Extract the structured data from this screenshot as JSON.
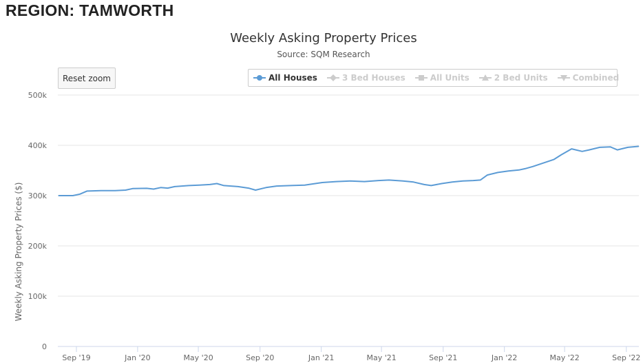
{
  "region": {
    "title": "REGION: TAMWORTH"
  },
  "toolbar": {
    "reset_zoom_label": "Reset zoom"
  },
  "legend": {
    "items": [
      {
        "label": "All Houses",
        "active": true,
        "symbol": "circle",
        "color": "#5b9bd5"
      },
      {
        "label": "3 Bed Houses",
        "active": false,
        "symbol": "diamond",
        "color": "#cccccc"
      },
      {
        "label": "All Units",
        "active": false,
        "symbol": "square",
        "color": "#cccccc"
      },
      {
        "label": "2 Bed Units",
        "active": false,
        "symbol": "triangle",
        "color": "#cccccc"
      },
      {
        "label": "Combined",
        "active": false,
        "symbol": "triangle-down",
        "color": "#cccccc"
      }
    ]
  },
  "chart_data": {
    "type": "line",
    "title": "Weekly Asking Property Prices",
    "subtitle": "Source: SQM Research",
    "ylabel": "Weekly Asking Property Prices ($)",
    "xlabel": "",
    "ylim": [
      0,
      500000
    ],
    "y_ticks": [
      {
        "value": 0,
        "label": "0"
      },
      {
        "value": 100000,
        "label": "100k"
      },
      {
        "value": 200000,
        "label": "200k"
      },
      {
        "value": 300000,
        "label": "300k"
      },
      {
        "value": 400000,
        "label": "400k"
      },
      {
        "value": 500000,
        "label": "500k"
      }
    ],
    "x_ticks": [
      "Sep '19",
      "Jan '20",
      "May '20",
      "Sep '20",
      "Jan '21",
      "May '21",
      "Sep '21",
      "Jan '22",
      "May '22",
      "Sep '22"
    ],
    "grid": true,
    "legend_position": "top-right",
    "series": [
      {
        "name": "All Houses",
        "color": "#5b9bd5",
        "points": [
          [
            "2019-07-28",
            300000
          ],
          [
            "2019-08-25",
            300000
          ],
          [
            "2019-09-08",
            303000
          ],
          [
            "2019-09-22",
            309000
          ],
          [
            "2019-10-20",
            310000
          ],
          [
            "2019-11-17",
            310000
          ],
          [
            "2019-12-08",
            311000
          ],
          [
            "2019-12-22",
            314000
          ],
          [
            "2020-01-19",
            314500
          ],
          [
            "2020-02-02",
            313000
          ],
          [
            "2020-02-16",
            316000
          ],
          [
            "2020-03-01",
            315000
          ],
          [
            "2020-03-15",
            318000
          ],
          [
            "2020-04-12",
            320000
          ],
          [
            "2020-05-03",
            321000
          ],
          [
            "2020-05-24",
            322000
          ],
          [
            "2020-06-07",
            324000
          ],
          [
            "2020-06-21",
            320000
          ],
          [
            "2020-07-19",
            318000
          ],
          [
            "2020-08-09",
            315000
          ],
          [
            "2020-08-23",
            311000
          ],
          [
            "2020-09-13",
            316000
          ],
          [
            "2020-10-04",
            319000
          ],
          [
            "2020-11-01",
            320000
          ],
          [
            "2020-11-29",
            321000
          ],
          [
            "2020-12-13",
            323000
          ],
          [
            "2021-01-03",
            326000
          ],
          [
            "2021-01-31",
            328000
          ],
          [
            "2021-02-28",
            329000
          ],
          [
            "2021-03-28",
            328000
          ],
          [
            "2021-04-25",
            330000
          ],
          [
            "2021-05-16",
            331000
          ],
          [
            "2021-06-13",
            329000
          ],
          [
            "2021-07-04",
            327000
          ],
          [
            "2021-07-25",
            322000
          ],
          [
            "2021-08-08",
            320000
          ],
          [
            "2021-08-29",
            324000
          ],
          [
            "2021-09-19",
            327000
          ],
          [
            "2021-10-10",
            329000
          ],
          [
            "2021-10-31",
            330000
          ],
          [
            "2021-11-14",
            331000
          ],
          [
            "2021-11-28",
            341000
          ],
          [
            "2021-12-19",
            346000
          ],
          [
            "2022-01-09",
            349000
          ],
          [
            "2022-01-30",
            351000
          ],
          [
            "2022-02-13",
            354000
          ],
          [
            "2022-02-27",
            358000
          ],
          [
            "2022-03-20",
            365000
          ],
          [
            "2022-04-10",
            372000
          ],
          [
            "2022-04-24",
            381000
          ],
          [
            "2022-05-15",
            393000
          ],
          [
            "2022-06-05",
            388000
          ],
          [
            "2022-06-19",
            391000
          ],
          [
            "2022-07-10",
            396000
          ],
          [
            "2022-07-31",
            397000
          ],
          [
            "2022-08-14",
            391000
          ],
          [
            "2022-09-04",
            396000
          ],
          [
            "2022-09-25",
            398000
          ]
        ]
      }
    ]
  }
}
